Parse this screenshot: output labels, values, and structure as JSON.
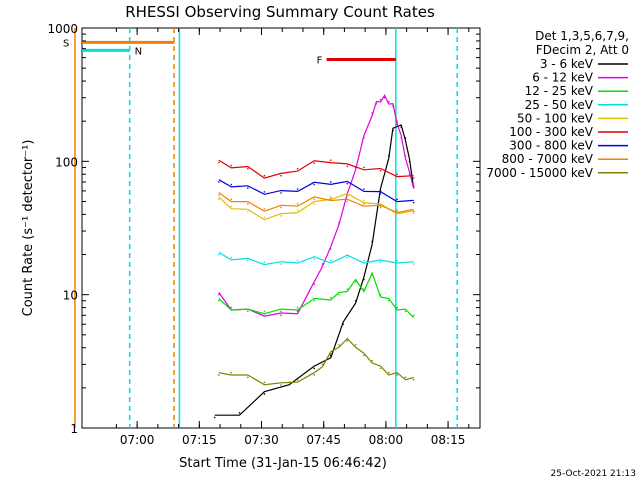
{
  "chart_data": {
    "type": "line",
    "title": "RHESSI Observing Summary Count Rates",
    "xlabel": "Start Time (31-Jan-15 06:46:42)",
    "ylabel": "Count Rate (s⁻¹ detector⁻¹)",
    "timestamp": "25-Oct-2021 21:13",
    "legend_header": [
      "Det 1,3,5,6,7,9,",
      "FDecim 2, Att 0"
    ],
    "x_unit": "minutes since 06:46:42",
    "xlim": [
      0,
      96
    ],
    "ylim": [
      1,
      1000
    ],
    "yscale": "log",
    "x_ticks": [
      {
        "label": "07:00",
        "value": 13.3
      },
      {
        "label": "07:15",
        "value": 28.3
      },
      {
        "label": "07:30",
        "value": 43.3
      },
      {
        "label": "07:45",
        "value": 58.3
      },
      {
        "label": "08:00",
        "value": 73.3
      },
      {
        "label": "08:15",
        "value": 88.3
      }
    ],
    "y_ticks": [
      {
        "label": "1",
        "value": 1
      },
      {
        "label": "10",
        "value": 10
      },
      {
        "label": "100",
        "value": 100
      },
      {
        "label": "1000",
        "value": 1000
      }
    ],
    "series": [
      {
        "name": "3 - 6 keV",
        "color": "#000000",
        "x": [
          32,
          38,
          44,
          50,
          56,
          60,
          63,
          66,
          68,
          70,
          72,
          74,
          75,
          76,
          77,
          78,
          79,
          80
        ],
        "y": [
          1.2,
          1.3,
          1.8,
          2.2,
          2.8,
          3.5,
          6,
          9,
          13,
          25,
          60,
          110,
          170,
          190,
          180,
          150,
          100,
          65
        ]
      },
      {
        "name": "6 - 12 keV",
        "color": "#e000e0",
        "x": [
          33,
          36,
          40,
          44,
          48,
          52,
          56,
          58,
          60,
          62,
          64,
          66,
          68,
          70,
          71,
          72,
          73,
          74,
          75,
          76,
          77,
          78,
          79,
          80
        ],
        "y": [
          10,
          8,
          7.5,
          7.2,
          7,
          7.5,
          12,
          17,
          22,
          35,
          55,
          90,
          150,
          230,
          270,
          290,
          300,
          280,
          260,
          200,
          150,
          110,
          80,
          65
        ]
      },
      {
        "name": "12 - 25 keV",
        "color": "#00e000",
        "x": [
          33,
          36,
          40,
          44,
          48,
          52,
          56,
          60,
          62,
          64,
          66,
          68,
          70,
          72,
          74,
          76,
          78,
          80
        ],
        "y": [
          9,
          8,
          7.5,
          7.5,
          7.5,
          8,
          9,
          9.5,
          10,
          11,
          12.5,
          11,
          14,
          10,
          9,
          8,
          7.5,
          7
        ]
      },
      {
        "name": "25 - 50 keV",
        "color": "#00e0e0",
        "x": [
          33,
          36,
          40,
          44,
          48,
          52,
          56,
          60,
          64,
          68,
          72,
          76,
          80
        ],
        "y": [
          20,
          19,
          18,
          17.5,
          17,
          18,
          18.5,
          18,
          19,
          18,
          17.5,
          18,
          17
        ]
      },
      {
        "name": "50 - 100 keV",
        "color": "#e0c000",
        "x": [
          33,
          36,
          40,
          44,
          48,
          52,
          56,
          60,
          64,
          68,
          72,
          76,
          80
        ],
        "y": [
          52,
          46,
          42,
          38,
          39,
          43,
          48,
          54,
          55,
          51,
          46,
          42,
          41
        ]
      },
      {
        "name": "100 - 300 keV",
        "color": "#e00000",
        "x": [
          33,
          36,
          40,
          44,
          48,
          52,
          56,
          60,
          64,
          68,
          72,
          76,
          80
        ],
        "y": [
          98,
          93,
          88,
          78,
          78,
          88,
          97,
          102,
          92,
          90,
          85,
          80,
          75
        ]
      },
      {
        "name": "300 - 800 keV",
        "color": "#0000e0",
        "x": [
          33,
          36,
          40,
          44,
          48,
          52,
          56,
          60,
          64,
          68,
          72,
          76,
          80
        ],
        "y": [
          70,
          67,
          63,
          59,
          58,
          62,
          67,
          70,
          68,
          62,
          57,
          52,
          49
        ]
      },
      {
        "name": "800 - 7000 keV",
        "color": "#f08000",
        "x": [
          33,
          36,
          40,
          44,
          48,
          52,
          56,
          60,
          64,
          68,
          72,
          76,
          80
        ],
        "y": [
          56,
          52,
          48,
          44,
          45,
          48,
          52,
          53,
          50,
          48,
          45,
          43,
          42
        ]
      },
      {
        "name": "7000 - 15000 keV",
        "color": "#808000",
        "x": [
          33,
          36,
          40,
          44,
          48,
          52,
          56,
          58,
          60,
          62,
          64,
          66,
          68,
          70,
          72,
          74,
          76,
          78,
          80
        ],
        "y": [
          2.5,
          2.6,
          2.4,
          2.2,
          2.1,
          2.3,
          2.5,
          3.0,
          3.6,
          4.2,
          4.5,
          4.2,
          3.5,
          3.2,
          2.8,
          2.6,
          2.5,
          2.4,
          2.3
        ]
      }
    ],
    "markers": [
      {
        "label": "S",
        "color": "#f08000",
        "x_start": -1.7,
        "x_end": 22.2,
        "y": 780
      },
      {
        "label": "N",
        "color": "#00e0e0",
        "x_start": -6,
        "x_end": 11.5,
        "y": 680
      },
      {
        "label": "F",
        "color": "#e00000",
        "x_start": 59,
        "x_end": 75.7,
        "y": 580
      }
    ],
    "vertical_lines": [
      {
        "x": -1.7,
        "color": "#f08000",
        "style": "solid"
      },
      {
        "x": 11.5,
        "color": "#00e0e0",
        "style": "dashed"
      },
      {
        "x": 22.2,
        "color": "#f08000",
        "style": "dashed"
      },
      {
        "x": 23.5,
        "color": "#00e0e0",
        "style": "solid"
      },
      {
        "x": 75.7,
        "color": "#00e0e0",
        "style": "solid"
      },
      {
        "x": 90.5,
        "color": "#00e0e0",
        "style": "dashed"
      }
    ]
  }
}
